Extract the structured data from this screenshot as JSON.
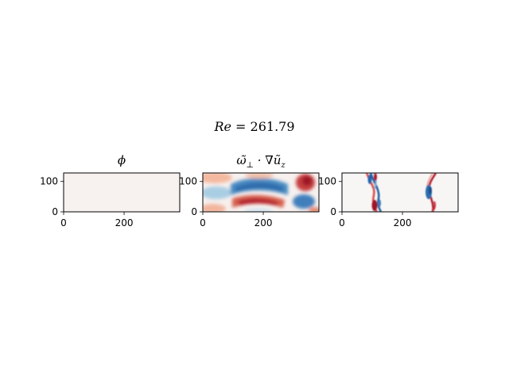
{
  "figure": {
    "suptitle_var": "Re",
    "suptitle_eq": " = ",
    "suptitle_value": "261.79"
  },
  "chart_data": [
    {
      "type": "heatmap",
      "title": "ϕ",
      "xlim": [
        0,
        384
      ],
      "ylim": [
        0,
        128
      ],
      "xticks": [
        0,
        200
      ],
      "yticks": [
        0,
        100
      ],
      "colormap": "RdBu_r",
      "description_field": "nearly uniform, slightly above zero",
      "fill_color": "#f7f2ef"
    },
    {
      "type": "heatmap",
      "title_parts": [
        "ω̃",
        "⊥",
        " · ∇ũ",
        "z"
      ],
      "xlim": [
        0,
        384
      ],
      "ylim": [
        0,
        128
      ],
      "xticks": [
        0,
        200
      ],
      "yticks": [
        0,
        100
      ],
      "colormap": "RdBu_r"
    },
    {
      "type": "heatmap",
      "title": "",
      "xlim": [
        0,
        384
      ],
      "ylim": [
        0,
        128
      ],
      "xticks": [
        0,
        200
      ],
      "yticks": [
        0,
        100
      ],
      "colormap": "RdBu_r"
    }
  ]
}
